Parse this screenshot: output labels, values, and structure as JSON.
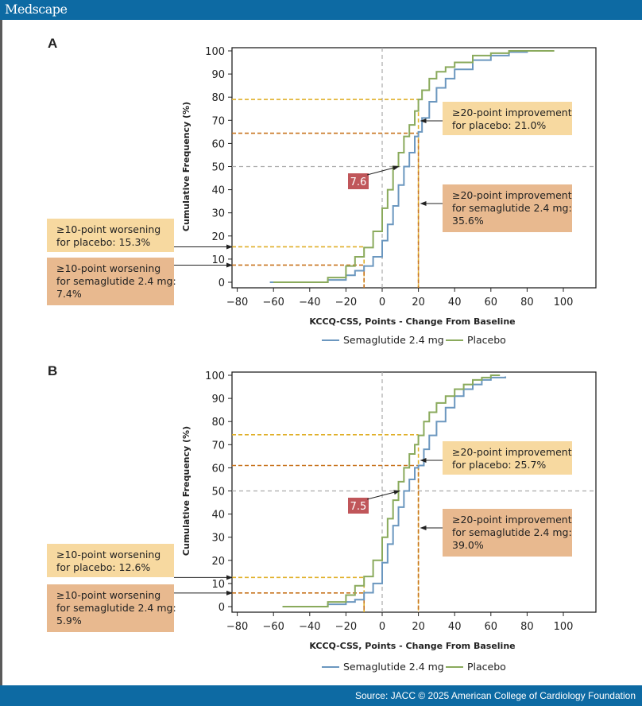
{
  "header": {
    "brand": "Medscape"
  },
  "footer": {
    "source": "Source: JACC © 2025 American College of Cardiology Foundation"
  },
  "colors": {
    "semaglutide": "#6b97bf",
    "placebo": "#8aaa5c",
    "ann_placebo": "#f7d9a0",
    "ann_sema": "#e8b98f",
    "diff_box": "#c0565a",
    "ref_sema": "#c8741f",
    "ref_placebo": "#e0b02a"
  },
  "chart_data": [
    {
      "type": "line",
      "panel": "A",
      "title": "",
      "xlabel": "KCCQ-CSS, Points - Change From Baseline",
      "ylabel": "Cumulative Frequency (%)",
      "xlim": [
        -80,
        100
      ],
      "ylim": [
        0,
        100
      ],
      "xticks": [
        "−80",
        "−60",
        "−40",
        "−20",
        "0",
        "20",
        "40",
        "60",
        "80",
        "100"
      ],
      "yticks": [
        "0",
        "10",
        "20",
        "30",
        "40",
        "50",
        "60",
        "70",
        "80",
        "90",
        "100"
      ],
      "legend": [
        "Semaglutide 2.4 mg",
        "Placebo"
      ],
      "legend_position": "bottom",
      "series": [
        {
          "name": "Semaglutide 2.4 mg",
          "x": [
            -62,
            -40,
            -30,
            -20,
            -15,
            -10,
            -5,
            0,
            3,
            6,
            9,
            12,
            15,
            18,
            20,
            22,
            26,
            30,
            35,
            40,
            50,
            60,
            70,
            80
          ],
          "y": [
            0,
            0,
            1,
            3,
            5,
            7,
            11,
            18,
            25,
            33,
            42,
            50,
            56,
            63,
            65,
            71,
            78,
            84,
            88,
            92,
            96,
            98,
            99.5,
            100
          ]
        },
        {
          "name": "Placebo",
          "x": [
            -60,
            -40,
            -30,
            -20,
            -15,
            -10,
            -5,
            0,
            3,
            6,
            9,
            12,
            15,
            18,
            20,
            22,
            26,
            30,
            35,
            40,
            50,
            60,
            70,
            95
          ],
          "y": [
            0,
            0,
            2,
            7,
            11,
            15,
            22,
            32,
            40,
            50,
            56,
            63,
            68,
            74,
            79,
            83,
            88,
            91,
            93,
            95,
            98,
            99,
            100,
            100
          ]
        }
      ],
      "reference_lines": {
        "x": [
          0,
          -10,
          20
        ],
        "y": [
          50,
          79,
          64.4,
          15.3,
          7.4
        ]
      },
      "median_difference": "7.6",
      "annotations": [
        {
          "side": "right",
          "group": "placebo",
          "text": [
            "≥20-point improvement",
            "for placebo: 21.0%"
          ]
        },
        {
          "side": "right",
          "group": "sema",
          "text": [
            "≥20-point improvement",
            "for semaglutide 2.4 mg:",
            "35.6%"
          ]
        },
        {
          "side": "left",
          "group": "placebo",
          "text": [
            "≥10-point worsening",
            "for placebo: 15.3%"
          ]
        },
        {
          "side": "left",
          "group": "sema",
          "text": [
            "≥10-point worsening",
            "for semaglutide 2.4 mg:",
            "7.4%"
          ]
        }
      ]
    },
    {
      "type": "line",
      "panel": "B",
      "title": "",
      "xlabel": "KCCQ-CSS, Points - Change From Baseline",
      "ylabel": "Cumulative Frequency (%)",
      "xlim": [
        -80,
        100
      ],
      "ylim": [
        0,
        100
      ],
      "xticks": [
        "−80",
        "−60",
        "−40",
        "−20",
        "0",
        "20",
        "40",
        "60",
        "80",
        "100"
      ],
      "yticks": [
        "0",
        "10",
        "20",
        "30",
        "40",
        "50",
        "60",
        "70",
        "80",
        "90",
        "100"
      ],
      "legend": [
        "Semaglutide 2.4 mg",
        "Placebo"
      ],
      "legend_position": "bottom",
      "series": [
        {
          "name": "Semaglutide 2.4 mg",
          "x": [
            -55,
            -40,
            -30,
            -20,
            -15,
            -10,
            -5,
            0,
            3,
            6,
            9,
            12,
            15,
            18,
            20,
            23,
            26,
            30,
            35,
            40,
            45,
            50,
            55,
            60,
            68
          ],
          "y": [
            0,
            0,
            1,
            2,
            3,
            6,
            10,
            19,
            27,
            35,
            43,
            50,
            55,
            60,
            61,
            68,
            74,
            80,
            86,
            91,
            94,
            96,
            98,
            99,
            99.5
          ]
        },
        {
          "name": "Placebo",
          "x": [
            -55,
            -40,
            -30,
            -20,
            -15,
            -10,
            -5,
            0,
            3,
            6,
            9,
            12,
            15,
            18,
            20,
            23,
            26,
            30,
            35,
            40,
            45,
            50,
            55,
            60,
            65
          ],
          "y": [
            0,
            0,
            2,
            5,
            9,
            13,
            20,
            30,
            38,
            46,
            54,
            60,
            66,
            70,
            74,
            80,
            84,
            88,
            91,
            94,
            96,
            98,
            99,
            100,
            100
          ]
        }
      ],
      "reference_lines": {
        "x": [
          0,
          -10,
          20
        ],
        "y": [
          50,
          74.3,
          61,
          12.6,
          5.9
        ]
      },
      "median_difference": "7.5",
      "annotations": [
        {
          "side": "right",
          "group": "placebo",
          "text": [
            "≥20-point improvement",
            "for placebo: 25.7%"
          ]
        },
        {
          "side": "right",
          "group": "sema",
          "text": [
            "≥20-point improvement",
            "for semaglutide 2.4 mg:",
            "39.0%"
          ]
        },
        {
          "side": "left",
          "group": "placebo",
          "text": [
            "≥10-point worsening",
            "for placebo: 12.6%"
          ]
        },
        {
          "side": "left",
          "group": "sema",
          "text": [
            "≥10-point worsening",
            "for semaglutide 2.4 mg:",
            "5.9%"
          ]
        }
      ]
    }
  ]
}
